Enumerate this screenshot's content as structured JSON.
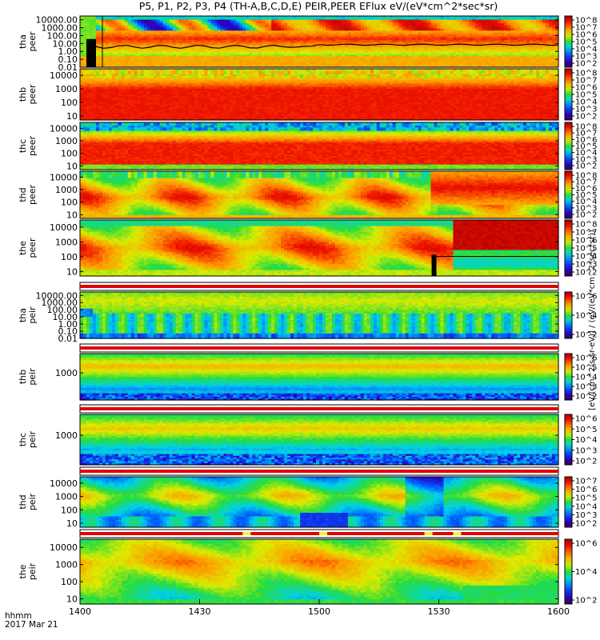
{
  "chart_data": {
    "type": "heatmap",
    "title": "P5, P1, P2, P3, P4 (TH-A,B,C,D,E) PEIR,PEER EFlux eV/(eV*cm^2*sec*sr)",
    "colorbar_label": "[eV/(cm^2-s-sr-eV)] / (eV/(eV*cm^2*sec*sr))",
    "x": {
      "ticks": [
        "1400",
        "1430",
        "1500",
        "1530",
        "1600"
      ],
      "range_minutes": [
        0,
        120
      ],
      "corner_label_1": "hhmm",
      "corner_label_2": "2017 Mar 21"
    },
    "panels": [
      {
        "label": "tha peer",
        "line1": "tha",
        "line2": "peer",
        "yticks": [
          "10000.00",
          "1000.00",
          "100.00",
          "10.00",
          "1.00",
          "0.10",
          "0.01"
        ],
        "ylim_log": [
          0.01,
          30000
        ],
        "cbticks": [
          "10^8",
          "10^7",
          "10^6",
          "10^5",
          "10^4",
          "10^3",
          "10^2"
        ],
        "style": "peer_a",
        "flag_bar": false
      },
      {
        "label": "thb peer",
        "line1": "thb",
        "line2": "peer",
        "yticks": [
          "10000",
          "1000",
          "100",
          "10"
        ],
        "ylim_log": [
          5,
          30000
        ],
        "cbticks": [
          "10^8",
          "10^7",
          "10^6",
          "10^5",
          "10^4",
          "10^3",
          "10^2"
        ],
        "style": "peer_b",
        "flag_bar": false
      },
      {
        "label": "thc peer",
        "line1": "thc",
        "line2": "peer",
        "yticks": [
          "10000",
          "1000",
          "100",
          "10"
        ],
        "ylim_log": [
          5,
          30000
        ],
        "cbticks": [
          "10^8",
          "10^7",
          "10^6",
          "10^5",
          "10^4",
          "10^3",
          "10^2"
        ],
        "style": "peer_c",
        "flag_bar": false
      },
      {
        "label": "thd peer",
        "line1": "thd",
        "line2": "peer",
        "yticks": [
          "10000",
          "1000",
          "100",
          "10"
        ],
        "ylim_log": [
          5,
          30000
        ],
        "cbticks": [
          "10^8",
          "10^7",
          "10^6",
          "10^5",
          "10^4",
          "10^3",
          "10^2"
        ],
        "style": "peer_d",
        "flag_bar": false
      },
      {
        "label": "the peer",
        "line1": "the",
        "line2": "peer",
        "yticks": [
          "10000",
          "1000",
          "100",
          "10"
        ],
        "ylim_log": [
          5,
          30000
        ],
        "cbticks": [
          "10^8",
          "10^7",
          "10^6",
          "10^5",
          "10^4",
          "10^3",
          "10^2"
        ],
        "style": "peer_e",
        "flag_bar": false
      },
      {
        "label": "tha peir",
        "line1": "tha",
        "line2": "peir",
        "yticks": [
          "10000.00",
          "1000.00",
          "100.00",
          "10.00",
          "1.00",
          "0.10",
          "0.01"
        ],
        "ylim_log": [
          0.01,
          30000
        ],
        "cbticks": [
          "10^6",
          "10^4",
          "10^2"
        ],
        "style": "peir_a",
        "flag_bar": true
      },
      {
        "label": "thb peir",
        "line1": "thb",
        "line2": "peir",
        "yticks": [
          "1000"
        ],
        "ylim_log": [
          8,
          30000
        ],
        "cbticks": [
          "10^6",
          "10^5",
          "10^4",
          "10^3",
          "10^2"
        ],
        "style": "peir_b",
        "flag_bar": true
      },
      {
        "label": "thc peir",
        "line1": "thc",
        "line2": "peir",
        "yticks": [
          "1000"
        ],
        "ylim_log": [
          8,
          30000
        ],
        "cbticks": [
          "10^6",
          "10^5",
          "10^4",
          "10^3",
          "10^2"
        ],
        "style": "peir_c",
        "flag_bar": true
      },
      {
        "label": "thd peir",
        "line1": "thd",
        "line2": "peir",
        "yticks": [
          "10000",
          "1000",
          "100",
          "10"
        ],
        "ylim_log": [
          5,
          30000
        ],
        "cbticks": [
          "10^7",
          "10^6",
          "10^5",
          "10^4",
          "10^3",
          "10^2"
        ],
        "style": "peir_d",
        "flag_bar": true
      },
      {
        "label": "the peir",
        "line1": "the",
        "line2": "peir",
        "yticks": [
          "10000",
          "1000",
          "100",
          "10"
        ],
        "ylim_log": [
          5,
          30000
        ],
        "cbticks": [
          "10^6",
          "10^4",
          "10^2"
        ],
        "style": "peir_e",
        "flag_bar": true
      }
    ]
  }
}
